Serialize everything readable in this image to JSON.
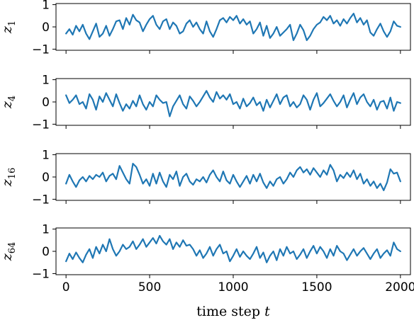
{
  "chart_data": {
    "type": "line",
    "xlabel": "time step t",
    "xlabel_main": "time step ",
    "xlabel_italic": "t",
    "x_ticks": [
      0,
      500,
      1000,
      1500,
      2000
    ],
    "x_tick_labels": [
      "0",
      "500",
      "1000",
      "1500",
      "2000"
    ],
    "xlim": [
      -60,
      2060
    ],
    "y_ticks": [
      -1,
      0,
      1
    ],
    "y_tick_labels": [
      "−1",
      "0",
      "1"
    ],
    "ylim": [
      -1.05,
      1.05
    ],
    "color": "#1f77b4",
    "grid": false,
    "legend": "none",
    "panels": [
      {
        "ylabel": "z1",
        "ylabel_base": "z",
        "ylabel_sub": "1",
        "x": [
          0,
          20,
          40,
          60,
          80,
          100,
          120,
          140,
          160,
          180,
          200,
          220,
          240,
          260,
          280,
          300,
          320,
          340,
          360,
          380,
          400,
          420,
          440,
          460,
          480,
          500,
          520,
          540,
          560,
          580,
          600,
          620,
          640,
          660,
          680,
          700,
          720,
          740,
          760,
          780,
          800,
          820,
          840,
          860,
          880,
          900,
          920,
          940,
          960,
          980,
          1000,
          1020,
          1040,
          1060,
          1080,
          1100,
          1120,
          1140,
          1160,
          1180,
          1200,
          1220,
          1240,
          1260,
          1280,
          1300,
          1320,
          1340,
          1360,
          1380,
          1400,
          1420,
          1440,
          1460,
          1480,
          1500,
          1520,
          1540,
          1560,
          1580,
          1600,
          1620,
          1640,
          1660,
          1680,
          1700,
          1720,
          1740,
          1760,
          1780,
          1800,
          1820,
          1840,
          1860,
          1880,
          1900,
          1920,
          1940,
          1960,
          1980,
          2000
        ],
        "y": [
          -0.3,
          -0.1,
          -0.35,
          0.05,
          -0.2,
          0.1,
          -0.3,
          -0.55,
          -0.2,
          0.15,
          -0.45,
          -0.3,
          0.05,
          -0.4,
          -0.1,
          0.25,
          0.3,
          -0.1,
          0.4,
          0.1,
          0.55,
          0.3,
          0.2,
          -0.2,
          0.1,
          0.35,
          0.5,
          0.1,
          -0.1,
          0.25,
          0.35,
          -0.1,
          0.2,
          0.05,
          -0.3,
          -0.2,
          0.15,
          0.3,
          0.0,
          0.2,
          -0.1,
          -0.3,
          0.25,
          -0.2,
          -0.45,
          -0.1,
          0.3,
          0.4,
          0.2,
          0.45,
          0.3,
          0.5,
          0.15,
          0.35,
          0.1,
          0.25,
          -0.3,
          -0.1,
          0.2,
          -0.4,
          0.05,
          -0.5,
          -0.3,
          0.0,
          -0.4,
          -0.25,
          -0.1,
          0.1,
          -0.6,
          -0.3,
          0.1,
          -0.15,
          -0.6,
          -0.4,
          -0.1,
          0.1,
          0.2,
          0.45,
          0.3,
          0.5,
          0.15,
          0.3,
          0.05,
          0.35,
          0.15,
          0.4,
          0.6,
          0.2,
          0.4,
          0.1,
          0.3,
          -0.25,
          -0.4,
          -0.1,
          0.15,
          -0.2,
          -0.45,
          -0.2,
          0.25,
          0.05,
          0.0
        ]
      },
      {
        "ylabel": "z4",
        "ylabel_base": "z",
        "ylabel_sub": "4",
        "x": [
          0,
          20,
          40,
          60,
          80,
          100,
          120,
          140,
          160,
          180,
          200,
          220,
          240,
          260,
          280,
          300,
          320,
          340,
          360,
          380,
          400,
          420,
          440,
          460,
          480,
          500,
          520,
          540,
          560,
          580,
          600,
          620,
          640,
          660,
          680,
          700,
          720,
          740,
          760,
          780,
          800,
          820,
          840,
          860,
          880,
          900,
          920,
          940,
          960,
          980,
          1000,
          1020,
          1040,
          1060,
          1080,
          1100,
          1120,
          1140,
          1160,
          1180,
          1200,
          1220,
          1240,
          1260,
          1280,
          1300,
          1320,
          1340,
          1360,
          1380,
          1400,
          1420,
          1440,
          1460,
          1480,
          1500,
          1520,
          1540,
          1560,
          1580,
          1600,
          1620,
          1640,
          1660,
          1680,
          1700,
          1720,
          1740,
          1760,
          1780,
          1800,
          1820,
          1840,
          1860,
          1880,
          1900,
          1920,
          1940,
          1960,
          1980,
          2000
        ],
        "y": [
          0.3,
          -0.05,
          0.1,
          0.3,
          -0.1,
          0.0,
          -0.3,
          0.35,
          0.1,
          -0.35,
          0.25,
          0.0,
          0.4,
          0.1,
          -0.2,
          0.35,
          -0.05,
          -0.4,
          -0.1,
          -0.3,
          0.05,
          -0.2,
          0.3,
          -0.1,
          -0.35,
          0.0,
          -0.2,
          0.3,
          0.1,
          -0.05,
          0.0,
          -0.65,
          -0.2,
          0.05,
          0.3,
          -0.1,
          -0.3,
          0.25,
          0.05,
          -0.2,
          0.0,
          0.25,
          0.5,
          0.2,
          0.0,
          0.45,
          0.15,
          0.3,
          0.1,
          0.35,
          -0.1,
          0.0,
          -0.3,
          0.15,
          -0.2,
          -0.05,
          0.2,
          -0.15,
          0.0,
          -0.4,
          0.1,
          -0.25,
          0.05,
          0.35,
          -0.1,
          0.2,
          0.3,
          -0.2,
          0.0,
          -0.25,
          -0.1,
          0.3,
          0.1,
          -0.35,
          0.1,
          0.4,
          -0.2,
          -0.05,
          0.15,
          0.35,
          0.05,
          -0.2,
          0.0,
          0.3,
          -0.25,
          0.1,
          0.4,
          -0.1,
          0.2,
          0.35,
          0.0,
          -0.2,
          0.1,
          -0.35,
          0.0,
          0.05,
          -0.3,
          0.2,
          -0.4,
          0.0,
          -0.05
        ]
      },
      {
        "ylabel": "z16",
        "ylabel_base": "z",
        "ylabel_sub": "16",
        "x": [
          0,
          20,
          40,
          60,
          80,
          100,
          120,
          140,
          160,
          180,
          200,
          220,
          240,
          260,
          280,
          300,
          320,
          340,
          360,
          380,
          400,
          420,
          440,
          460,
          480,
          500,
          520,
          540,
          560,
          580,
          600,
          620,
          640,
          660,
          680,
          700,
          720,
          740,
          760,
          780,
          800,
          820,
          840,
          860,
          880,
          900,
          920,
          940,
          960,
          980,
          1000,
          1020,
          1040,
          1060,
          1080,
          1100,
          1120,
          1140,
          1160,
          1180,
          1200,
          1220,
          1240,
          1260,
          1280,
          1300,
          1320,
          1340,
          1360,
          1380,
          1400,
          1420,
          1440,
          1460,
          1480,
          1500,
          1520,
          1540,
          1560,
          1580,
          1600,
          1620,
          1640,
          1660,
          1680,
          1700,
          1720,
          1740,
          1760,
          1780,
          1800,
          1820,
          1840,
          1860,
          1880,
          1900,
          1920,
          1940,
          1960,
          1980,
          2000
        ],
        "y": [
          -0.3,
          0.1,
          -0.2,
          -0.45,
          -0.15,
          0.0,
          -0.2,
          0.05,
          -0.1,
          0.1,
          0.0,
          0.2,
          -0.2,
          0.05,
          0.15,
          -0.1,
          0.5,
          0.2,
          -0.1,
          -0.3,
          0.6,
          0.45,
          0.1,
          -0.3,
          -0.1,
          -0.4,
          0.15,
          -0.3,
          0.2,
          -0.2,
          -0.45,
          0.1,
          -0.1,
          0.25,
          -0.4,
          0.0,
          0.15,
          -0.2,
          -0.35,
          -0.1,
          -0.2,
          0.0,
          -0.25,
          0.1,
          0.3,
          0.0,
          -0.2,
          0.25,
          -0.15,
          -0.3,
          0.1,
          -0.2,
          -0.45,
          -0.2,
          0.05,
          -0.3,
          0.1,
          -0.2,
          0.15,
          -0.25,
          -0.5,
          -0.2,
          -0.4,
          -0.1,
          0.0,
          -0.3,
          -0.1,
          0.2,
          0.0,
          0.3,
          0.45,
          0.2,
          0.35,
          0.1,
          0.4,
          0.2,
          0.0,
          0.3,
          0.1,
          0.55,
          0.3,
          -0.2,
          0.1,
          -0.05,
          0.2,
          0.0,
          0.3,
          -0.1,
          0.15,
          -0.3,
          -0.1,
          -0.4,
          -0.2,
          -0.5,
          -0.3,
          -0.6,
          -0.25,
          0.35,
          0.15,
          0.2,
          -0.2
        ]
      },
      {
        "ylabel": "z64",
        "ylabel_base": "z",
        "ylabel_sub": "64",
        "x": [
          0,
          20,
          40,
          60,
          80,
          100,
          120,
          140,
          160,
          180,
          200,
          220,
          240,
          260,
          280,
          300,
          320,
          340,
          360,
          380,
          400,
          420,
          440,
          460,
          480,
          500,
          520,
          540,
          560,
          580,
          600,
          620,
          640,
          660,
          680,
          700,
          720,
          740,
          760,
          780,
          800,
          820,
          840,
          860,
          880,
          900,
          920,
          940,
          960,
          980,
          1000,
          1020,
          1040,
          1060,
          1080,
          1100,
          1120,
          1140,
          1160,
          1180,
          1200,
          1220,
          1240,
          1260,
          1280,
          1300,
          1320,
          1340,
          1360,
          1380,
          1400,
          1420,
          1440,
          1460,
          1480,
          1500,
          1520,
          1540,
          1560,
          1580,
          1600,
          1620,
          1640,
          1660,
          1680,
          1700,
          1720,
          1740,
          1760,
          1780,
          1800,
          1820,
          1840,
          1860,
          1880,
          1900,
          1920,
          1940,
          1960,
          1980,
          2000
        ],
        "y": [
          -0.45,
          -0.1,
          -0.35,
          -0.05,
          -0.3,
          -0.5,
          -0.15,
          0.1,
          -0.3,
          0.2,
          -0.1,
          0.3,
          0.0,
          0.55,
          0.1,
          -0.2,
          0.0,
          0.3,
          0.1,
          0.2,
          0.45,
          0.1,
          0.3,
          0.55,
          0.2,
          0.4,
          0.6,
          0.35,
          0.7,
          0.45,
          0.3,
          0.55,
          0.1,
          0.4,
          0.2,
          0.5,
          0.25,
          0.3,
          0.1,
          -0.2,
          0.05,
          -0.3,
          -0.1,
          0.2,
          -0.2,
          0.1,
          0.3,
          -0.1,
          0.0,
          -0.45,
          -0.2,
          0.1,
          -0.25,
          0.0,
          -0.2,
          -0.35,
          -0.1,
          0.2,
          -0.3,
          -0.05,
          -0.5,
          -0.2,
          0.0,
          -0.4,
          0.1,
          -0.2,
          0.2,
          -0.1,
          0.0,
          -0.35,
          -0.15,
          0.1,
          -0.3,
          0.0,
          0.25,
          -0.1,
          0.2,
          0.0,
          -0.3,
          0.1,
          -0.2,
          0.25,
          0.0,
          -0.1,
          -0.4,
          -0.15,
          0.1,
          -0.2,
          0.0,
          0.15,
          -0.1,
          -0.35,
          -0.1,
          0.1,
          -0.3,
          -0.1,
          0.05,
          -0.2,
          0.4,
          0.1,
          0.0
        ]
      }
    ]
  }
}
